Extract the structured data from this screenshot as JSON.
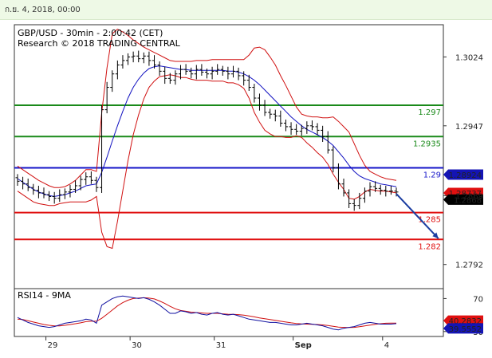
{
  "header": {
    "date_text": "ก.ย. 4, 2018, 00:00"
  },
  "chart_data": {
    "type": "candlestick",
    "title": "GBP/USD - 30min - 2:00:42 (CET)",
    "subtitle": "Research © 2018 TRADING CENTRAL",
    "ylim": [
      1.2765,
      1.306
    ],
    "yticks": [
      1.3024,
      1.2947,
      1.2869,
      1.2792
    ],
    "ytick_labels": [
      "1.3024",
      "1.2947",
      "1.2869",
      "1.2792"
    ],
    "xtick_labels": [
      "29",
      "30",
      "31",
      "Sep",
      "4"
    ],
    "levels": [
      {
        "value": 1.297,
        "label": "1.297",
        "color": "#1a8a1a"
      },
      {
        "value": 1.2935,
        "label": "1.2935",
        "color": "#1a8a1a"
      },
      {
        "value": 1.29,
        "label": "1.29",
        "color": "#1414c8"
      },
      {
        "value": 1.285,
        "label": "1.285",
        "color": "#e01010"
      },
      {
        "value": 1.282,
        "label": "1.282",
        "color": "#e01010"
      }
    ],
    "price_tags": [
      {
        "value": 1.28924,
        "label": "1.28924",
        "bg": "#1414b4",
        "fg": "#ffffff"
      },
      {
        "value": 1.28737,
        "label": "1.28737",
        "bg": "#e01010",
        "fg": "#ffffff"
      },
      {
        "value": 1.2868,
        "label": "1.2868",
        "bg": "#000000",
        "fg": "#ffffff"
      }
    ],
    "arrow": {
      "from": [
        72,
        1.2871
      ],
      "to": [
        80,
        1.2821
      ],
      "color": "#1a3ca0"
    },
    "price": {
      "x": [
        0,
        1,
        2,
        3,
        4,
        5,
        6,
        7,
        8,
        9,
        10,
        11,
        12,
        13,
        14,
        15,
        16,
        17,
        18,
        19,
        20,
        21,
        22,
        23,
        24,
        25,
        26,
        27,
        28,
        29,
        30,
        31,
        32,
        33,
        34,
        35,
        36,
        37,
        38,
        39,
        40,
        41,
        42,
        43,
        44,
        45,
        46,
        47,
        48,
        49,
        50,
        51,
        52,
        53,
        54,
        55,
        56,
        57,
        58,
        59,
        60,
        61,
        62,
        63,
        64,
        65,
        66,
        67,
        68,
        69,
        70,
        71,
        72
      ],
      "close": [
        1.2885,
        1.2882,
        1.2878,
        1.2875,
        1.2872,
        1.287,
        1.2868,
        1.2866,
        1.287,
        1.2873,
        1.2876,
        1.288,
        1.2887,
        1.289,
        1.2886,
        1.2878,
        1.2965,
        1.299,
        1.3005,
        1.3015,
        1.302,
        1.3024,
        1.3025,
        1.3022,
        1.3025,
        1.302,
        1.3015,
        1.3008,
        1.3,
        1.2998,
        1.3005,
        1.301,
        1.3008,
        1.3005,
        1.301,
        1.3007,
        1.3005,
        1.3008,
        1.301,
        1.3008,
        1.3005,
        1.3008,
        1.3003,
        1.2998,
        1.299,
        1.2978,
        1.297,
        1.2962,
        1.296,
        1.2958,
        1.295,
        1.2946,
        1.2943,
        1.2941,
        1.2944,
        1.2947,
        1.2946,
        1.2942,
        1.2935,
        1.292,
        1.29,
        1.2882,
        1.2872,
        1.286,
        1.2858,
        1.2866,
        1.2874,
        1.2879,
        1.2877,
        1.2875,
        1.2874,
        1.2874,
        1.2873
      ]
    },
    "ma": [
      1.2888,
      1.2884,
      1.288,
      1.2876,
      1.2873,
      1.2871,
      1.2869,
      1.2868,
      1.2869,
      1.287,
      1.2872,
      1.2874,
      1.2877,
      1.288,
      1.2881,
      1.2882,
      1.2895,
      1.2912,
      1.293,
      1.2947,
      1.2963,
      1.2978,
      1.299,
      1.2999,
      1.3006,
      1.3011,
      1.3013,
      1.3014,
      1.3013,
      1.3012,
      1.3011,
      1.301,
      1.301,
      1.3009,
      1.3009,
      1.3009,
      1.3009,
      1.3009,
      1.3009,
      1.3009,
      1.3008,
      1.3008,
      1.3007,
      1.3005,
      1.3002,
      1.2998,
      1.2993,
      1.2987,
      1.2981,
      1.2975,
      1.2969,
      1.2963,
      1.2957,
      1.2952,
      1.2947,
      1.2943,
      1.294,
      1.2937,
      1.2934,
      1.293,
      1.2925,
      1.2918,
      1.2911,
      1.2903,
      1.2896,
      1.2891,
      1.2888,
      1.2886,
      1.2884,
      1.2882,
      1.2881,
      1.288,
      1.2879
    ],
    "band_upper": [
      1.2902,
      1.2898,
      1.2894,
      1.289,
      1.2886,
      1.2883,
      1.288,
      1.2878,
      1.2878,
      1.2879,
      1.2882,
      1.2886,
      1.2892,
      1.2898,
      1.2898,
      1.2896,
      1.2962,
      1.3012,
      1.305,
      1.3055,
      1.3052,
      1.3048,
      1.3043,
      1.3039,
      1.3035,
      1.3032,
      1.3029,
      1.3026,
      1.3023,
      1.302,
      1.3019,
      1.3019,
      1.3019,
      1.3019,
      1.302,
      1.302,
      1.302,
      1.3021,
      1.3021,
      1.3021,
      1.3021,
      1.3021,
      1.3021,
      1.3021,
      1.3026,
      1.3034,
      1.3035,
      1.3032,
      1.3024,
      1.3015,
      1.3003,
      1.2992,
      1.298,
      1.2968,
      1.296,
      1.2958,
      1.2957,
      1.2957,
      1.2956,
      1.2956,
      1.2957,
      1.2952,
      1.2946,
      1.294,
      1.2927,
      1.2914,
      1.2903,
      1.2896,
      1.2893,
      1.289,
      1.2888,
      1.2887,
      1.2886
    ],
    "band_lower": [
      1.2874,
      1.287,
      1.2866,
      1.2862,
      1.286,
      1.2859,
      1.2858,
      1.2858,
      1.286,
      1.2861,
      1.2862,
      1.2862,
      1.2862,
      1.2862,
      1.2864,
      1.2868,
      1.2828,
      1.2812,
      1.281,
      1.284,
      1.2874,
      1.2908,
      1.2937,
      1.2959,
      1.2977,
      1.299,
      1.2997,
      1.3002,
      1.3003,
      1.3004,
      1.3003,
      1.3001,
      1.3001,
      1.2999,
      1.2998,
      1.2998,
      1.2998,
      1.2997,
      1.2997,
      1.2997,
      1.2995,
      1.2995,
      1.2993,
      1.2989,
      1.2978,
      1.2962,
      1.2951,
      1.2942,
      1.2938,
      1.2935,
      1.2935,
      1.2934,
      1.2934,
      1.2936,
      1.2934,
      1.2928,
      1.2923,
      1.2917,
      1.2912,
      1.2904,
      1.2893,
      1.2884,
      1.2876,
      1.2866,
      1.2865,
      1.2868,
      1.2873,
      1.2876,
      1.2875,
      1.2874,
      1.2874,
      1.2873,
      1.2872
    ],
    "rsi": {
      "label": "RSI14 - 9MA",
      "ylim": [
        24,
        82
      ],
      "yticks": [
        70,
        30
      ],
      "ytick_labels": [
        "70",
        "30"
      ],
      "rsi_tag": {
        "value": 39.5552,
        "label": "39.5552",
        "bg": "#1414b4",
        "fg": "#ffffff"
      },
      "ma_tag": {
        "value": 40.2832,
        "label": "40.2832",
        "bg": "#e01010",
        "fg": "#ffffff"
      },
      "values": [
        47,
        44,
        41,
        39,
        37,
        36,
        35,
        36,
        38,
        40,
        41,
        42,
        43,
        45,
        44,
        40,
        62,
        66,
        70,
        72,
        73,
        72,
        71,
        70,
        71,
        69,
        66,
        62,
        57,
        52,
        52,
        55,
        54,
        52,
        53,
        51,
        50,
        52,
        53,
        51,
        50,
        51,
        49,
        47,
        45,
        44,
        43,
        42,
        41,
        41,
        40,
        39,
        38,
        38,
        39,
        40,
        39,
        38,
        37,
        35,
        33,
        32,
        34,
        35,
        36,
        38,
        40,
        41,
        40,
        39,
        39,
        39,
        39.5552
      ],
      "ma": [
        45,
        44.5,
        43,
        41.5,
        40,
        38.5,
        37.5,
        36.8,
        36.8,
        37.5,
        38.5,
        39.5,
        40.5,
        42,
        42.5,
        42.5,
        46,
        51,
        56,
        61,
        65,
        68,
        70,
        70.5,
        71,
        70.5,
        69.5,
        67,
        64,
        60.5,
        57.5,
        55.5,
        54.5,
        53.5,
        53,
        52.5,
        52,
        52,
        52,
        51.5,
        51,
        50.8,
        50.5,
        49.8,
        48.8,
        47.8,
        46.5,
        45.5,
        44.5,
        43.5,
        42.5,
        41.5,
        40.5,
        39.8,
        39.3,
        39,
        38.8,
        38.5,
        38,
        37.3,
        36.3,
        35.3,
        35,
        34.8,
        35,
        35.8,
        36.8,
        37.8,
        38.8,
        39.5,
        40,
        40.2,
        40.2832
      ]
    }
  }
}
